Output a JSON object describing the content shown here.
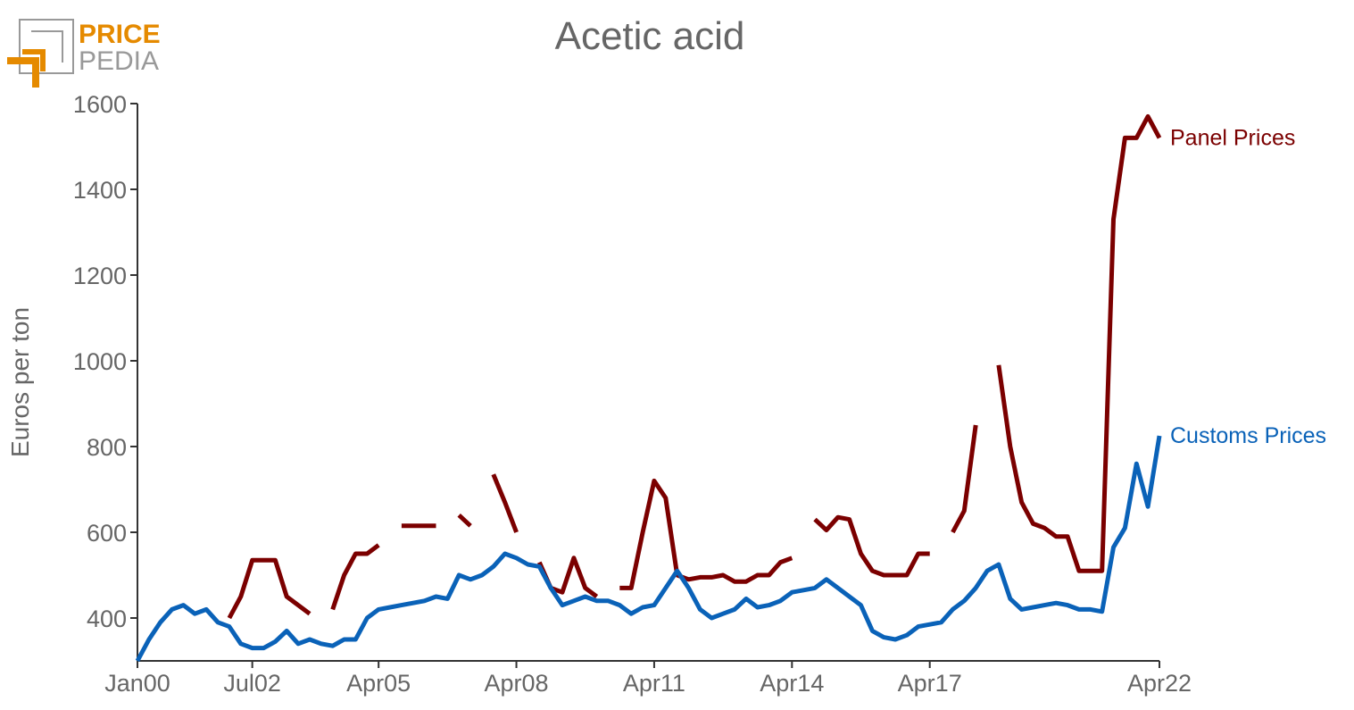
{
  "chart_data": {
    "type": "line",
    "title": "Acetic acid",
    "logo": [
      "PRICE",
      "PEDIA"
    ],
    "ylabel": "Euros per ton",
    "xlim": [
      "2000-01",
      "2022-04"
    ],
    "xticks": [
      {
        "value": "2000-01",
        "label": "Jan00"
      },
      {
        "value": "2002-07",
        "label": "Jul02"
      },
      {
        "value": "2005-04",
        "label": "Apr05"
      },
      {
        "value": "2008-04",
        "label": "Apr08"
      },
      {
        "value": "2011-04",
        "label": "Apr11"
      },
      {
        "value": "2014-04",
        "label": "Apr14"
      },
      {
        "value": "2017-04",
        "label": "Apr17"
      },
      {
        "value": "2022-04",
        "label": "Apr22"
      }
    ],
    "ylim": [
      300,
      1600
    ],
    "yticks": [
      400,
      600,
      800,
      1000,
      1200,
      1400,
      1600
    ],
    "x": [
      "2000-01",
      "2000-04",
      "2000-07",
      "2000-10",
      "2001-01",
      "2001-04",
      "2001-07",
      "2001-10",
      "2002-01",
      "2002-04",
      "2002-07",
      "2002-10",
      "2003-01",
      "2003-04",
      "2003-07",
      "2003-10",
      "2004-01",
      "2004-04",
      "2004-07",
      "2004-10",
      "2005-01",
      "2005-04",
      "2005-07",
      "2005-10",
      "2006-01",
      "2006-04",
      "2006-07",
      "2006-10",
      "2007-01",
      "2007-04",
      "2007-07",
      "2007-10",
      "2008-01",
      "2008-04",
      "2008-07",
      "2008-10",
      "2009-01",
      "2009-04",
      "2009-07",
      "2009-10",
      "2010-01",
      "2010-04",
      "2010-07",
      "2010-10",
      "2011-01",
      "2011-04",
      "2011-07",
      "2011-10",
      "2012-01",
      "2012-04",
      "2012-07",
      "2012-10",
      "2013-01",
      "2013-04",
      "2013-07",
      "2013-10",
      "2014-01",
      "2014-04",
      "2014-07",
      "2014-10",
      "2015-01",
      "2015-04",
      "2015-07",
      "2015-10",
      "2016-01",
      "2016-04",
      "2016-07",
      "2016-10",
      "2017-01",
      "2017-04",
      "2017-07",
      "2017-10",
      "2018-01",
      "2018-04",
      "2018-07",
      "2018-10",
      "2019-01",
      "2019-04",
      "2019-07",
      "2019-10",
      "2020-01",
      "2020-04",
      "2020-07",
      "2020-10",
      "2021-01",
      "2021-04",
      "2021-07",
      "2021-10",
      "2022-01",
      "2022-04"
    ],
    "series": [
      {
        "name": "Panel Prices",
        "color": "#7b0000",
        "values": [
          null,
          null,
          null,
          null,
          null,
          null,
          null,
          null,
          400,
          450,
          535,
          535,
          535,
          450,
          430,
          410,
          null,
          420,
          500,
          550,
          550,
          570,
          null,
          615,
          615,
          615,
          615,
          null,
          640,
          615,
          null,
          735,
          670,
          600,
          null,
          530,
          470,
          460,
          540,
          470,
          450,
          null,
          470,
          470,
          600,
          720,
          680,
          500,
          490,
          495,
          495,
          500,
          485,
          485,
          500,
          500,
          530,
          540,
          null,
          630,
          605,
          635,
          630,
          550,
          510,
          500,
          500,
          500,
          550,
          550,
          null,
          600,
          650,
          850,
          null,
          990,
          800,
          670,
          620,
          610,
          590,
          590,
          510,
          510,
          510,
          1330,
          1520,
          1520,
          1570,
          1520
        ]
      },
      {
        "name": "Customs Prices",
        "color": "#0a62b8",
        "values": [
          300,
          350,
          390,
          420,
          430,
          410,
          420,
          390,
          380,
          340,
          330,
          330,
          345,
          370,
          340,
          350,
          340,
          335,
          350,
          350,
          400,
          420,
          425,
          430,
          435,
          440,
          450,
          445,
          500,
          490,
          500,
          520,
          550,
          540,
          525,
          520,
          470,
          430,
          440,
          450,
          440,
          440,
          430,
          410,
          425,
          430,
          470,
          510,
          470,
          420,
          400,
          410,
          420,
          445,
          425,
          430,
          440,
          460,
          465,
          470,
          490,
          470,
          450,
          430,
          370,
          355,
          350,
          360,
          380,
          385,
          390,
          420,
          440,
          470,
          510,
          525,
          445,
          420,
          425,
          430,
          435,
          430,
          420,
          420,
          415,
          565,
          610,
          760,
          660,
          825
        ]
      }
    ]
  }
}
